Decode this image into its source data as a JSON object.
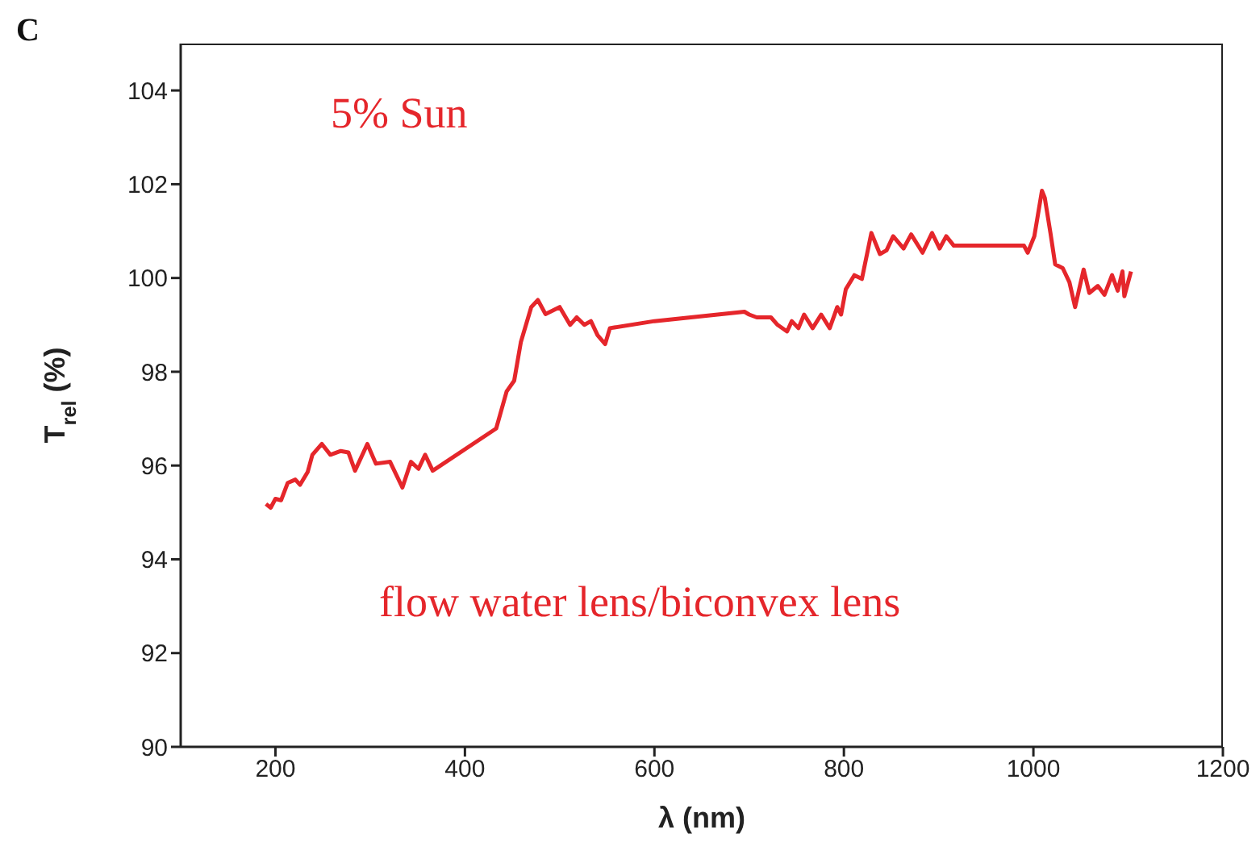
{
  "chart_data": {
    "type": "line",
    "xlabel": "λ (nm)",
    "ylabel": "T$_{rel}$ (%)",
    "annotations": [
      "C",
      "5% Sun",
      "flow water lens/biconvex lens"
    ],
    "xlim": [
      100,
      1200
    ],
    "xticks": [
      200,
      400,
      600,
      800,
      1000,
      1200
    ],
    "ylim": [
      90,
      105
    ],
    "yticks": [
      90,
      92,
      94,
      96,
      98,
      100,
      102,
      104
    ],
    "grid": false,
    "marker": "none",
    "line_style": "solid",
    "series": [
      {
        "color": "#e5262b",
        "x": [
          190,
          195,
          200,
          206,
          213,
          221,
          226,
          234,
          239,
          249,
          258,
          269,
          277,
          284,
          297,
          306,
          321,
          334,
          343,
          351,
          358,
          366,
          433,
          444,
          452,
          459,
          470,
          477,
          485,
          500,
          511,
          518,
          526,
          533,
          540,
          548,
          553,
          600,
          695,
          700,
          708,
          723,
          730,
          740,
          745,
          752,
          758,
          767,
          776,
          785,
          793,
          797,
          802,
          811,
          819,
          829,
          838,
          845,
          852,
          863,
          871,
          883,
          893,
          901,
          908,
          916,
          990,
          994,
          1001,
          1009,
          1012,
          1018,
          1023,
          1031,
          1038,
          1044,
          1053,
          1059,
          1068,
          1075,
          1083,
          1089,
          1094,
          1096,
          1103
        ],
        "values": [
          95.18,
          95.1,
          95.29,
          95.26,
          95.63,
          95.7,
          95.59,
          95.86,
          96.23,
          96.46,
          96.23,
          96.31,
          96.28,
          95.89,
          96.46,
          96.04,
          96.08,
          95.53,
          96.08,
          95.93,
          96.23,
          95.89,
          96.79,
          97.58,
          97.81,
          98.63,
          99.38,
          99.53,
          99.23,
          99.38,
          99.0,
          99.16,
          99.0,
          99.08,
          98.78,
          98.59,
          98.93,
          99.08,
          99.28,
          99.22,
          99.16,
          99.16,
          99.0,
          98.86,
          99.08,
          98.93,
          99.22,
          98.93,
          99.22,
          98.93,
          99.38,
          99.22,
          99.76,
          100.06,
          99.98,
          100.96,
          100.51,
          100.59,
          100.89,
          100.63,
          100.93,
          100.54,
          100.96,
          100.63,
          100.89,
          100.69,
          100.69,
          100.54,
          100.89,
          101.86,
          101.71,
          100.96,
          100.29,
          100.21,
          99.91,
          99.38,
          100.18,
          99.68,
          99.83,
          99.64,
          100.06,
          99.73,
          100.14,
          99.61,
          100.14
        ]
      }
    ]
  }
}
